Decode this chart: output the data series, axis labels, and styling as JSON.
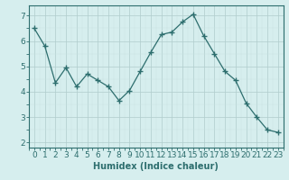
{
  "x": [
    0,
    1,
    2,
    3,
    4,
    5,
    6,
    7,
    8,
    9,
    10,
    11,
    12,
    13,
    14,
    15,
    16,
    17,
    18,
    19,
    20,
    21,
    22,
    23
  ],
  "y": [
    6.5,
    5.8,
    4.35,
    4.95,
    4.2,
    4.7,
    4.45,
    4.2,
    3.65,
    4.05,
    4.8,
    5.55,
    6.25,
    6.35,
    6.75,
    7.05,
    6.2,
    5.5,
    4.8,
    4.45,
    3.55,
    3.0,
    2.5,
    2.4
  ],
  "line_color": "#2d6e6e",
  "marker": "+",
  "marker_size": 4,
  "bg_color": "#d6eeee",
  "grid_major_color": "#b0cccc",
  "grid_minor_color": "#c8e0e0",
  "xlabel": "Humidex (Indice chaleur)",
  "xlim": [
    -0.5,
    23.5
  ],
  "ylim": [
    1.8,
    7.4
  ],
  "yticks": [
    2,
    3,
    4,
    5,
    6,
    7
  ],
  "xticks": [
    0,
    1,
    2,
    3,
    4,
    5,
    6,
    7,
    8,
    9,
    10,
    11,
    12,
    13,
    14,
    15,
    16,
    17,
    18,
    19,
    20,
    21,
    22,
    23
  ],
  "xlabel_fontsize": 7,
  "tick_fontsize": 6.5,
  "tick_color": "#2d6e6e",
  "spine_color": "#2d6e6e"
}
